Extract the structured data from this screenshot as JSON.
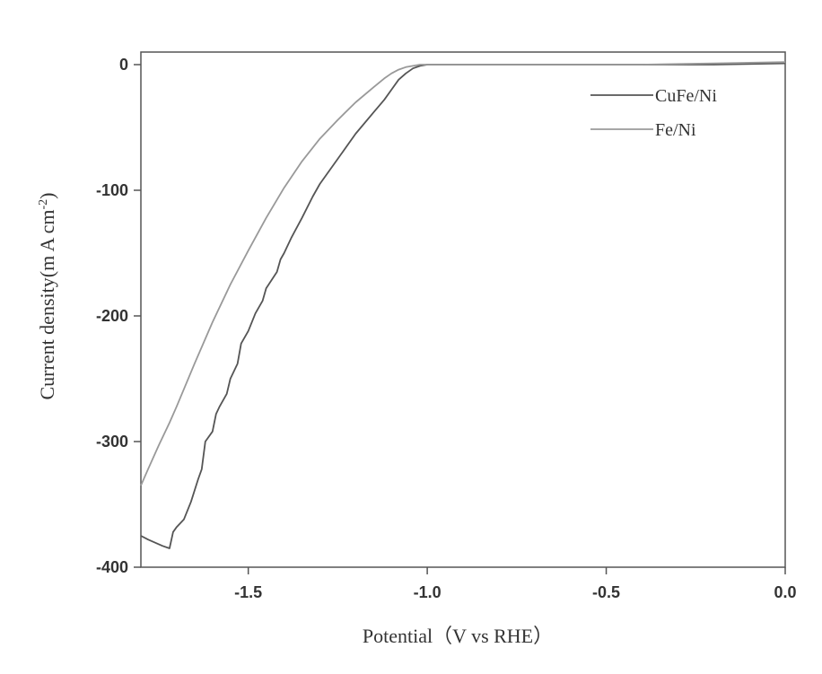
{
  "chart_data": {
    "type": "line",
    "title": "",
    "xlabel": "Potential（V vs RHE）",
    "ylabel": "Current density(m A cm",
    "ylabel_superscript": "-2",
    "ylabel_close": ")",
    "xlim": [
      -1.8,
      0.0
    ],
    "ylim": [
      -400,
      0
    ],
    "x_ticks": [
      -1.5,
      -1.0,
      -0.5,
      0.0
    ],
    "x_tick_labels": [
      "-1.5",
      "-1.0",
      "-0.5",
      "0.0"
    ],
    "y_ticks": [
      0,
      -100,
      -200,
      -300,
      -400
    ],
    "y_tick_labels": [
      "0",
      "-100",
      "-200",
      "-300",
      "-400"
    ],
    "grid": false,
    "legend_position": "top-right",
    "series": [
      {
        "name": "CuFe/Ni",
        "color": "#555555",
        "x": [
          -1.8,
          -1.78,
          -1.74,
          -1.72,
          -1.71,
          -1.7,
          -1.68,
          -1.66,
          -1.64,
          -1.63,
          -1.62,
          -1.6,
          -1.59,
          -1.58,
          -1.56,
          -1.55,
          -1.53,
          -1.52,
          -1.5,
          -1.48,
          -1.46,
          -1.45,
          -1.42,
          -1.41,
          -1.4,
          -1.38,
          -1.35,
          -1.32,
          -1.3,
          -1.25,
          -1.2,
          -1.15,
          -1.12,
          -1.1,
          -1.08,
          -1.06,
          -1.04,
          -1.02,
          -1.0,
          -0.9,
          -0.8,
          -0.6,
          -0.4,
          -0.2,
          0.0
        ],
        "y": [
          -375,
          -378,
          -383,
          -385,
          -372,
          -368,
          -362,
          -348,
          -330,
          -322,
          -300,
          -292,
          -278,
          -272,
          -262,
          -250,
          -238,
          -222,
          -212,
          -198,
          -188,
          -178,
          -165,
          -155,
          -150,
          -138,
          -122,
          -105,
          -95,
          -75,
          -55,
          -38,
          -28,
          -20,
          -12,
          -7,
          -3,
          -1,
          0,
          0,
          0,
          0,
          0,
          0,
          1
        ]
      },
      {
        "name": "Fe/Ni",
        "color": "#999999",
        "x": [
          -1.8,
          -1.78,
          -1.75,
          -1.72,
          -1.7,
          -1.65,
          -1.6,
          -1.55,
          -1.5,
          -1.45,
          -1.4,
          -1.35,
          -1.3,
          -1.25,
          -1.2,
          -1.15,
          -1.12,
          -1.1,
          -1.08,
          -1.06,
          -1.04,
          -1.02,
          -1.0,
          -0.9,
          -0.8,
          -0.6,
          -0.4,
          -0.2,
          0.0
        ],
        "y": [
          -335,
          -322,
          -303,
          -285,
          -272,
          -238,
          -205,
          -175,
          -148,
          -122,
          -98,
          -77,
          -59,
          -44,
          -30,
          -18,
          -11,
          -7,
          -4,
          -2,
          -1,
          0,
          0,
          0,
          0,
          0,
          0,
          1,
          2
        ]
      }
    ]
  }
}
